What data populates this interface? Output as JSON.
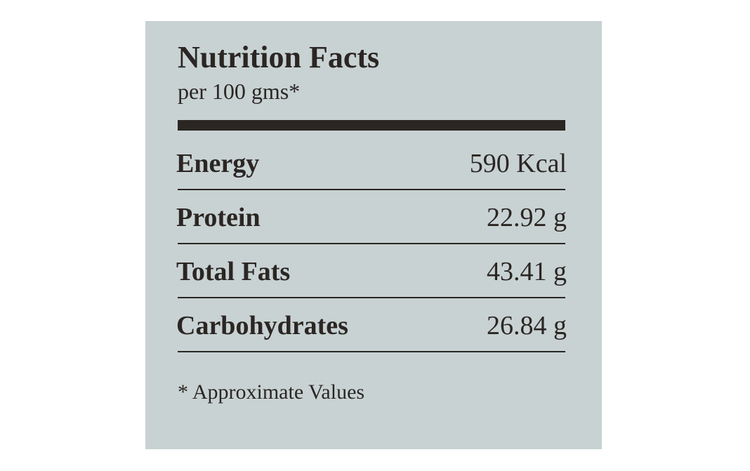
{
  "header": {
    "title": "Nutrition Facts",
    "subtitle": "per 100 gms*"
  },
  "table": {
    "rows": [
      [
        "Energy",
        "590 Kcal"
      ],
      [
        "Protein",
        "22.92 g"
      ],
      [
        "Total Fats",
        "43.41 g"
      ],
      [
        "Carbohydrates",
        "26.84 g"
      ]
    ]
  },
  "footnote": "* Approximate Values"
}
